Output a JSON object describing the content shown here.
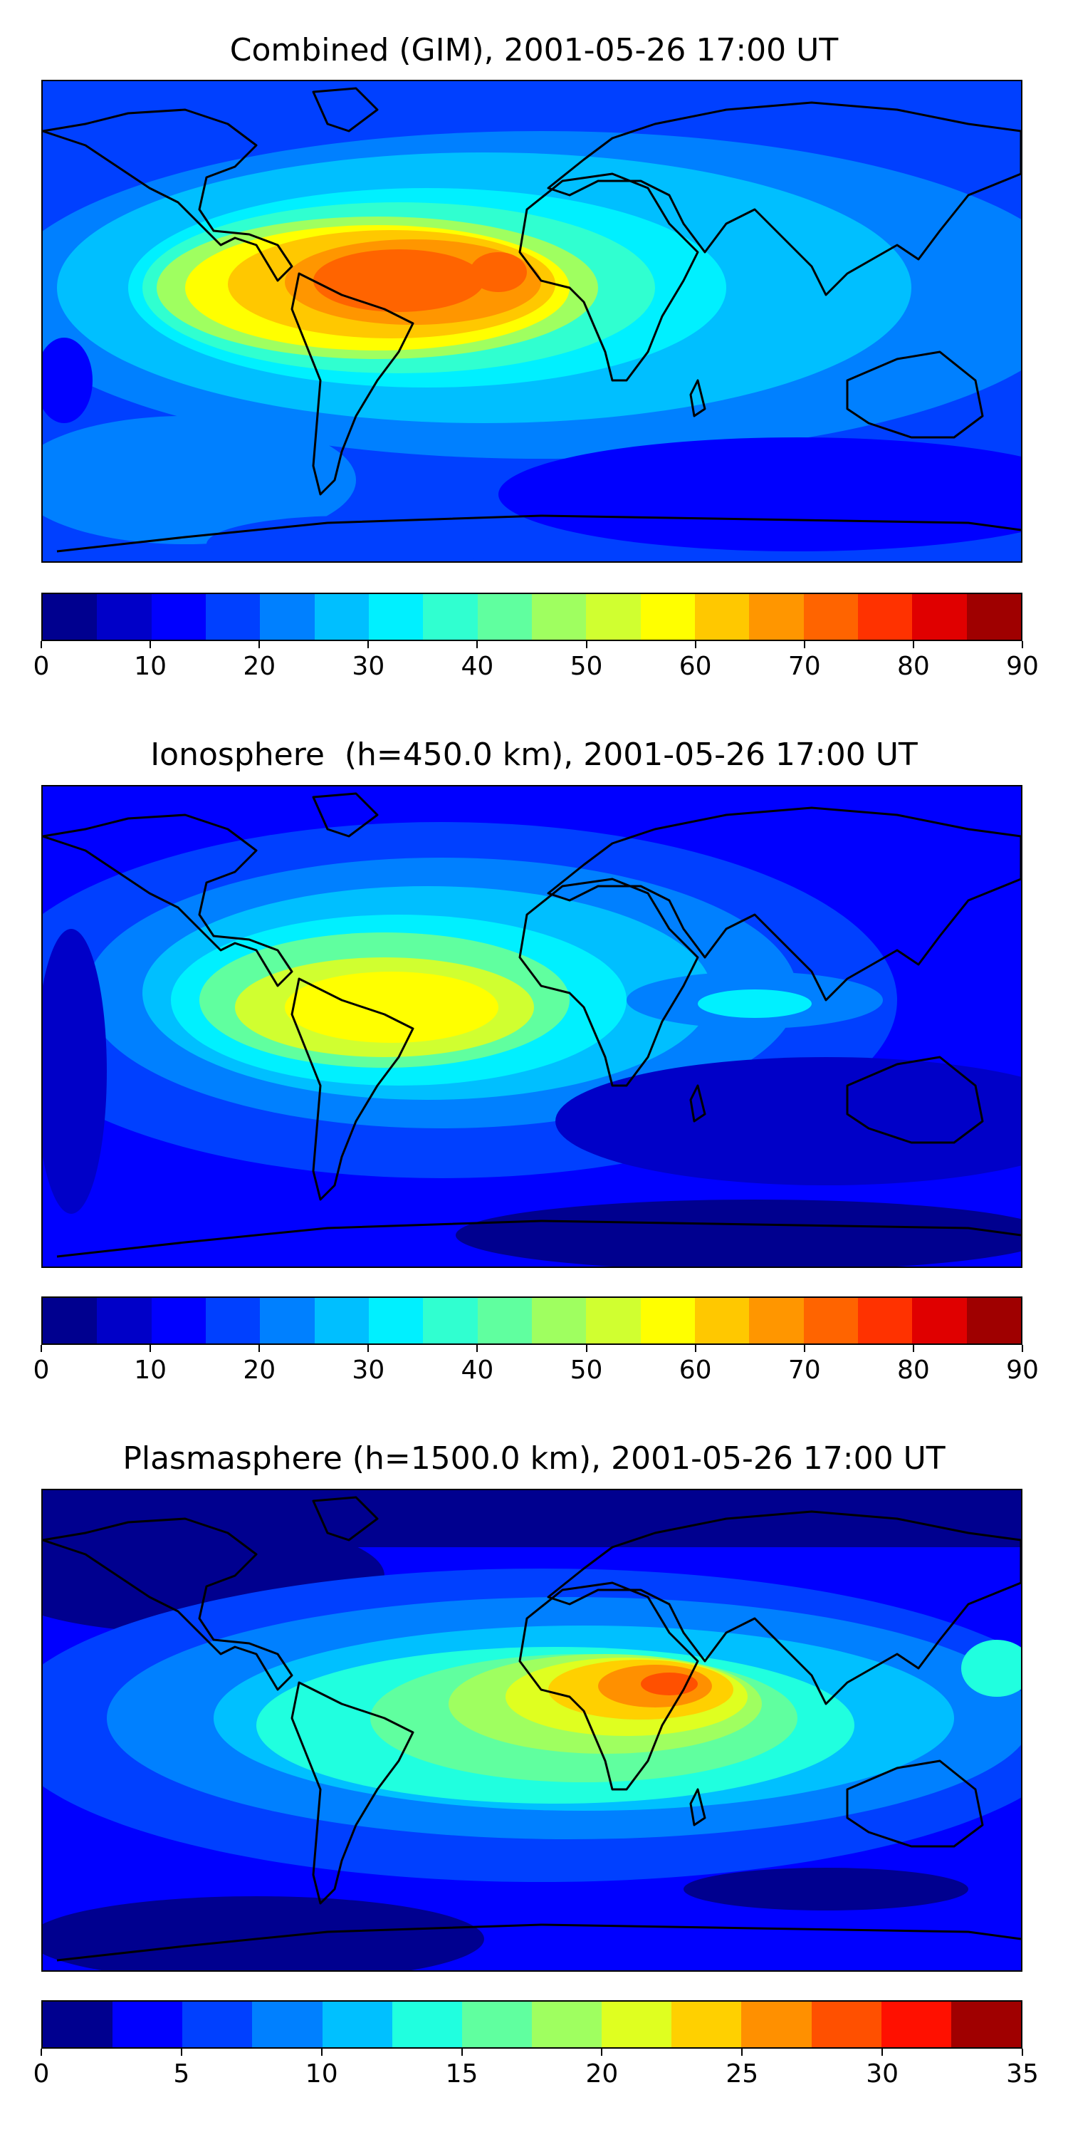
{
  "panels": [
    {
      "title": "Combined (GIM), 2001-05-26 17:00 UT",
      "colorbar": {
        "colors": [
          "#00008f",
          "#0000c8",
          "#0000ff",
          "#0040ff",
          "#0080ff",
          "#00bfff",
          "#00f0ff",
          "#30ffd0",
          "#60ff9f",
          "#9fff60",
          "#d0ff30",
          "#ffff00",
          "#ffc800",
          "#ff9600",
          "#ff6400",
          "#ff3200",
          "#e00000",
          "#9f0000"
        ],
        "tick_labels": [
          "0",
          "10",
          "20",
          "30",
          "40",
          "50",
          "60",
          "70",
          "80",
          "90"
        ]
      }
    },
    {
      "title": "Ionosphere  (h=450.0 km), 2001-05-26 17:00 UT",
      "colorbar": {
        "colors": [
          "#00008f",
          "#0000c8",
          "#0000ff",
          "#0040ff",
          "#0080ff",
          "#00bfff",
          "#00f0ff",
          "#30ffd0",
          "#60ff9f",
          "#9fff60",
          "#d0ff30",
          "#ffff00",
          "#ffc800",
          "#ff9600",
          "#ff6400",
          "#ff3200",
          "#e00000",
          "#9f0000"
        ],
        "tick_labels": [
          "0",
          "10",
          "20",
          "30",
          "40",
          "50",
          "60",
          "70",
          "80",
          "90"
        ]
      }
    },
    {
      "title": "Plasmasphere (h=1500.0 km), 2001-05-26 17:00 UT",
      "colorbar": {
        "colors": [
          "#00008f",
          "#0000ff",
          "#0040ff",
          "#0080ff",
          "#00c0ff",
          "#20ffdf",
          "#60ff9f",
          "#9fff60",
          "#dfff20",
          "#ffd000",
          "#ff9000",
          "#ff5000",
          "#ff1000",
          "#a00000"
        ],
        "tick_labels": [
          "0",
          "5",
          "10",
          "15",
          "20",
          "25",
          "30",
          "35"
        ]
      }
    }
  ]
}
